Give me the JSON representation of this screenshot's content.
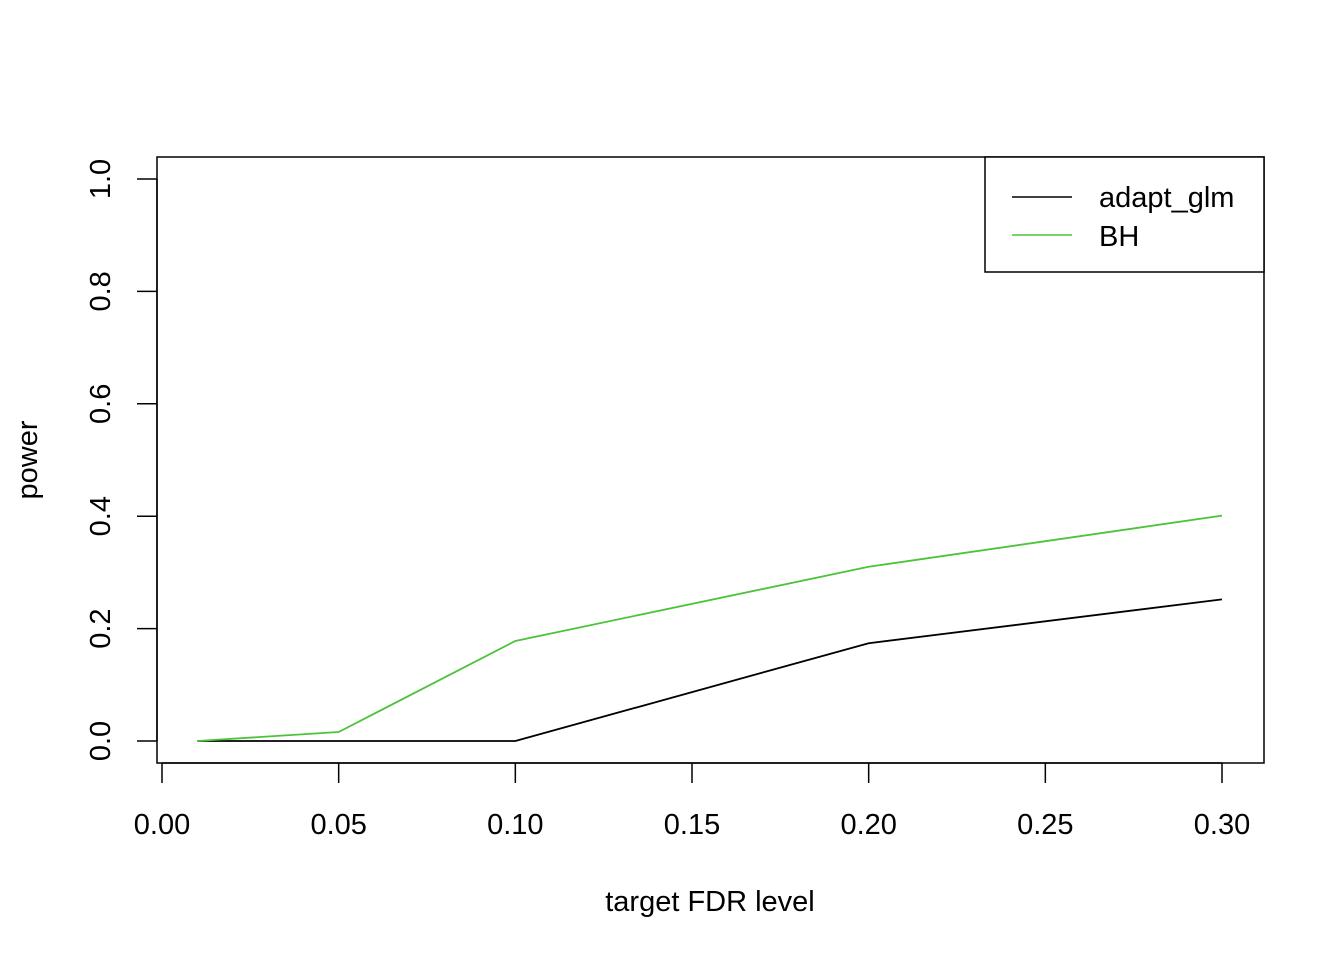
{
  "chart_data": {
    "type": "line",
    "title": "",
    "xlabel": "target FDR level",
    "ylabel": "power",
    "xlim": [
      0.0,
      0.3
    ],
    "ylim": [
      0.0,
      1.0
    ],
    "grid": false,
    "legend_position": "top-right",
    "x_ticks": [
      "0.00",
      "0.05",
      "0.10",
      "0.15",
      "0.20",
      "0.25",
      "0.30"
    ],
    "y_ticks": [
      "0.0",
      "0.2",
      "0.4",
      "0.6",
      "0.8",
      "1.0"
    ],
    "x": [
      0.01,
      0.05,
      0.1,
      0.2,
      0.3
    ],
    "series": [
      {
        "name": "adapt_glm",
        "color": "#000000",
        "values": [
          0.0,
          0.0,
          0.0,
          0.174,
          0.252
        ]
      },
      {
        "name": "BH",
        "color": "#4dc33b",
        "values": [
          0.0,
          0.016,
          0.178,
          0.31,
          0.401
        ]
      }
    ]
  }
}
